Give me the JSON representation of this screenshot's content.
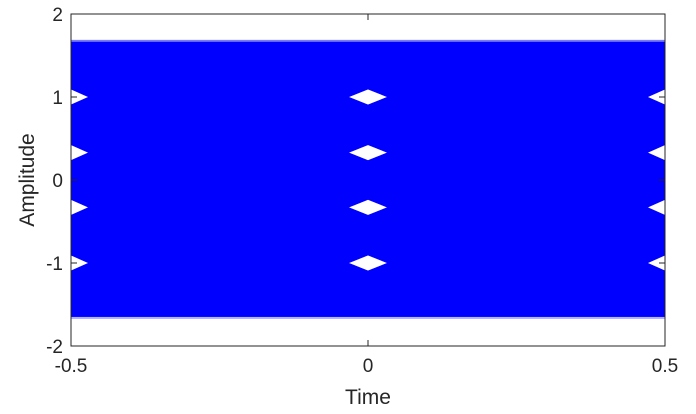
{
  "chart_data": {
    "type": "line",
    "title": "",
    "xlabel": "Time",
    "ylabel": "Amplitude",
    "xlim": [
      -0.5,
      0.5
    ],
    "ylim": [
      -2,
      2
    ],
    "xticks": [
      -0.5,
      0,
      0.5
    ],
    "xtick_labels": [
      "-0.5",
      "0",
      "0.5"
    ],
    "yticks": [
      -2,
      -1,
      0,
      1,
      2
    ],
    "ytick_labels": [
      "-2",
      "-1",
      "0",
      "1",
      "2"
    ],
    "grid": false,
    "legend": "none",
    "series": [
      {
        "description_of_shape": "eye pattern",
        "color": "#0000ff",
        "envelope_max": 1.67,
        "envelope_min": -1.65,
        "symbol_levels": [
          -1,
          -0.33,
          0.33,
          1
        ],
        "eye_openings_at_x": [
          -0.5,
          0,
          0.5
        ]
      }
    ],
    "colors": {
      "trace": "#0000ff",
      "axes": "#262626",
      "background": "#ffffff"
    }
  }
}
